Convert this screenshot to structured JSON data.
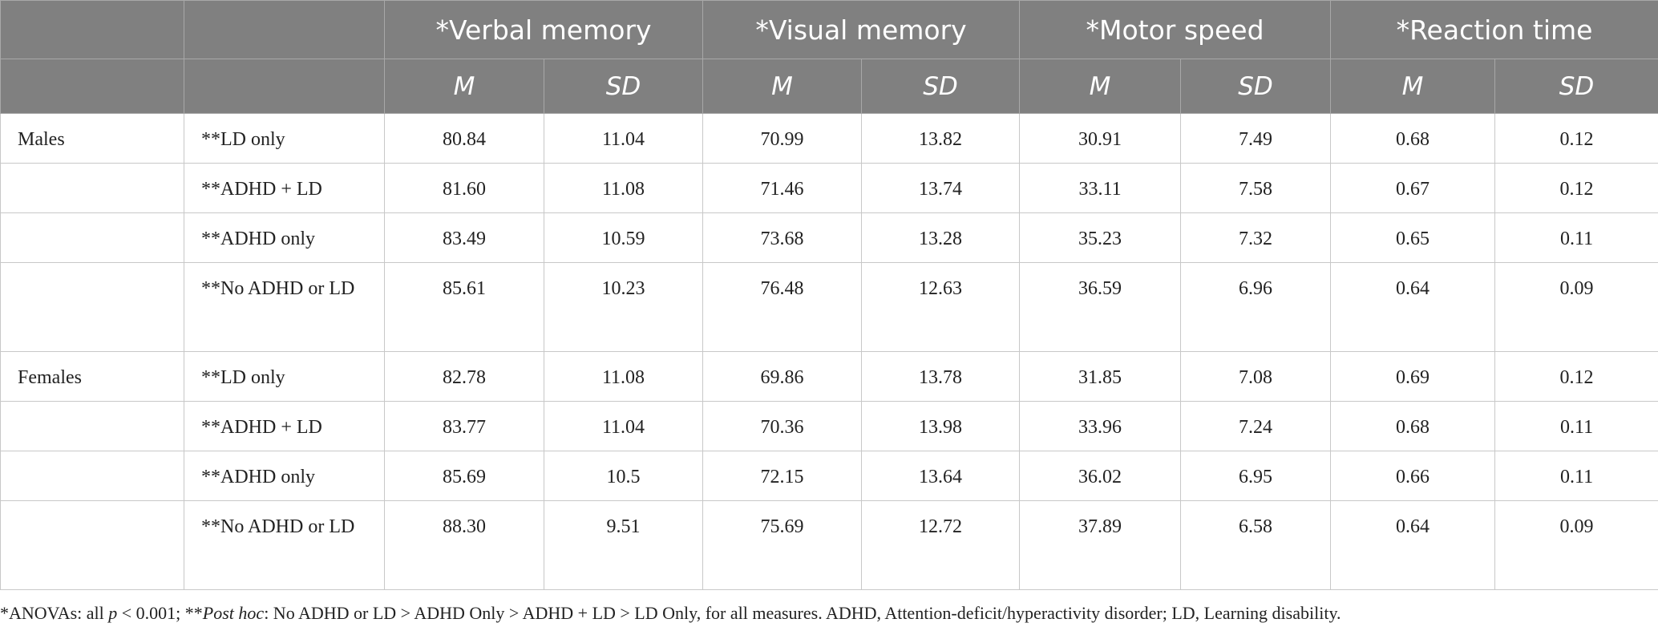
{
  "table": {
    "groups": [
      "*Verbal memory",
      "*Visual memory",
      "*Motor speed",
      "*Reaction time"
    ],
    "subheaders": [
      "M",
      "SD",
      "M",
      "SD",
      "M",
      "SD",
      "M",
      "SD"
    ],
    "sections": [
      {
        "name": "Males",
        "rows": [
          {
            "label": "**LD only",
            "values": [
              "80.84",
              "11.04",
              "70.99",
              "13.82",
              "30.91",
              "7.49",
              "0.68",
              "0.12"
            ]
          },
          {
            "label": "**ADHD + LD",
            "values": [
              "81.60",
              "11.08",
              "71.46",
              "13.74",
              "33.11",
              "7.58",
              "0.67",
              "0.12"
            ]
          },
          {
            "label": "**ADHD only",
            "values": [
              "83.49",
              "10.59",
              "73.68",
              "13.28",
              "35.23",
              "7.32",
              "0.65",
              "0.11"
            ]
          },
          {
            "label": "**No ADHD or LD",
            "values": [
              "85.61",
              "10.23",
              "76.48",
              "12.63",
              "36.59",
              "6.96",
              "0.64",
              "0.09"
            ]
          }
        ]
      },
      {
        "name": "Females",
        "rows": [
          {
            "label": "**LD only",
            "values": [
              "82.78",
              "11.08",
              "69.86",
              "13.78",
              "31.85",
              "7.08",
              "0.69",
              "0.12"
            ]
          },
          {
            "label": "**ADHD + LD",
            "values": [
              "83.77",
              "11.04",
              "70.36",
              "13.98",
              "33.96",
              "7.24",
              "0.68",
              "0.11"
            ]
          },
          {
            "label": "**ADHD only",
            "values": [
              "85.69",
              "10.5",
              "72.15",
              "13.64",
              "36.02",
              "6.95",
              "0.66",
              "0.11"
            ]
          },
          {
            "label": "**No ADHD or LD",
            "values": [
              "88.30",
              "9.51",
              "75.69",
              "12.72",
              "37.89",
              "6.58",
              "0.64",
              "0.09"
            ]
          }
        ]
      }
    ]
  },
  "footnote": [
    {
      "text": "*ANOVAs: all ",
      "italic": false
    },
    {
      "text": "p",
      "italic": true
    },
    {
      "text": " < 0.001; **",
      "italic": false
    },
    {
      "text": "Post hoc",
      "italic": true
    },
    {
      "text": ": No ADHD or LD > ADHD Only > ADHD + LD > LD Only, for all measures. ADHD, Attention-deficit/hyperactivity disorder; LD, Learning disability.",
      "italic": false
    }
  ]
}
